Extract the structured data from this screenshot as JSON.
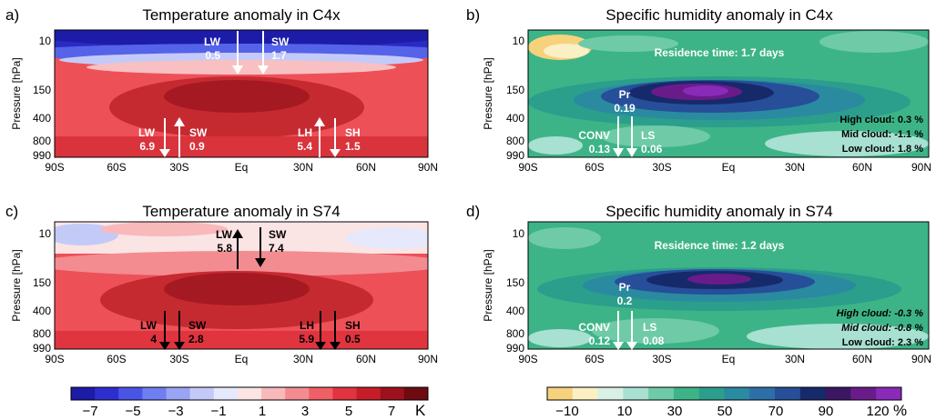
{
  "chart_data": [
    {
      "type": "heatmap",
      "panel_label": "a)",
      "title": "Temperature anomaly in C4x",
      "ylabel": "Pressure [hPa]",
      "x_ticks": [
        "90S",
        "60S",
        "30S",
        "Eq",
        "30N",
        "60N",
        "90N"
      ],
      "y_ticks": [
        "10",
        "150",
        "400",
        "800",
        "990"
      ],
      "colormap": "temperature",
      "annotations": [
        {
          "label": "LW",
          "value": "0.5",
          "dir": "down",
          "color": "#ffffff"
        },
        {
          "label": "SW",
          "value": "1.7",
          "dir": "down",
          "color": "#ffffff"
        },
        {
          "label": "LW",
          "value": "6.9",
          "dir": "down",
          "color": "#ffffff"
        },
        {
          "label": "SW",
          "value": "0.9",
          "dir": "up",
          "color": "#ffffff"
        },
        {
          "label": "LH",
          "value": "5.4",
          "dir": "up",
          "color": "#ffffff"
        },
        {
          "label": "SH",
          "value": "1.5",
          "dir": "down",
          "color": "#ffffff"
        }
      ]
    },
    {
      "type": "heatmap",
      "panel_label": "b)",
      "title": "Specific humidity anomaly in C4x",
      "ylabel": "Pressure [hPa]",
      "x_ticks": [
        "90S",
        "60S",
        "30S",
        "Eq",
        "30N",
        "60N",
        "90N"
      ],
      "y_ticks": [
        "10",
        "150",
        "400",
        "800",
        "990"
      ],
      "colormap": "humidity",
      "residence": "Residence time: 1.7 days",
      "annotations": [
        {
          "label": "Pr",
          "value": "0.19",
          "dir": "down"
        },
        {
          "label": "CONV",
          "value": "0.13",
          "dir": "down"
        },
        {
          "label": "LS",
          "value": "0.06",
          "dir": "down"
        }
      ],
      "clouds": [
        {
          "text": "High cloud: 0.3 %",
          "italic": false
        },
        {
          "text": "Mid cloud: -1.1 %",
          "italic": false
        },
        {
          "text": "Low cloud: 1.8 %",
          "italic": false
        }
      ]
    },
    {
      "type": "heatmap",
      "panel_label": "c)",
      "title": "Temperature anomaly in S74",
      "ylabel": "Pressure [hPa]",
      "x_ticks": [
        "90S",
        "60S",
        "30S",
        "Eq",
        "30N",
        "60N",
        "90N"
      ],
      "y_ticks": [
        "10",
        "150",
        "400",
        "800",
        "990"
      ],
      "colormap": "temperature",
      "annotations": [
        {
          "label": "LW",
          "value": "5.8",
          "dir": "up",
          "color": "#000000"
        },
        {
          "label": "SW",
          "value": "7.4",
          "dir": "down",
          "color": "#000000"
        },
        {
          "label": "LW",
          "value": "4",
          "dir": "down",
          "color": "#000000"
        },
        {
          "label": "SW",
          "value": "2.8",
          "dir": "down",
          "color": "#000000"
        },
        {
          "label": "LH",
          "value": "5.9",
          "dir": "down",
          "color": "#000000"
        },
        {
          "label": "SH",
          "value": "0.5",
          "dir": "down",
          "color": "#000000"
        }
      ]
    },
    {
      "type": "heatmap",
      "panel_label": "d)",
      "title": "Specific humidity anomaly in S74",
      "ylabel": "Pressure [hPa]",
      "x_ticks": [
        "90S",
        "60S",
        "30S",
        "Eq",
        "30N",
        "60N",
        "90N"
      ],
      "y_ticks": [
        "10",
        "150",
        "400",
        "800",
        "990"
      ],
      "colormap": "humidity",
      "residence": "Residence time: 1.2 days",
      "annotations": [
        {
          "label": "Pr",
          "value": "0.2",
          "dir": "down"
        },
        {
          "label": "CONV",
          "value": "0.12",
          "dir": "down"
        },
        {
          "label": "LS",
          "value": "0.08",
          "dir": "down"
        }
      ],
      "clouds": [
        {
          "text": "High cloud: -0.3 %",
          "italic": true
        },
        {
          "text": "Mid cloud: -0.8 %",
          "italic": true
        },
        {
          "text": "Low cloud: 2.3 %",
          "italic": false
        }
      ]
    }
  ],
  "colorbars": [
    {
      "ticks": [
        "−7",
        "−5",
        "−3",
        "−1",
        "1",
        "3",
        "5",
        "7"
      ],
      "unit": "K",
      "colors": [
        "#1c1ca8",
        "#2e2ecf",
        "#4a55e6",
        "#6f7ef0",
        "#9aa4f4",
        "#c4caf8",
        "#e6e9fb",
        "#fbe4e4",
        "#f8b9bb",
        "#f38c90",
        "#ee5f66",
        "#e0343f",
        "#c61e28",
        "#9c111b",
        "#6e0a10"
      ]
    },
    {
      "ticks": [
        "−10",
        "10",
        "30",
        "50",
        "70",
        "90",
        "120"
      ],
      "unit": "%",
      "colors": [
        "#f7d27c",
        "#fbefc4",
        "#d8f0e6",
        "#a8e0d2",
        "#6fcaa8",
        "#3db487",
        "#2b9e8c",
        "#2a8aa0",
        "#2d6fa8",
        "#274e99",
        "#162a6b",
        "#3b1763",
        "#6a1b8a",
        "#8a2ab8"
      ]
    }
  ]
}
